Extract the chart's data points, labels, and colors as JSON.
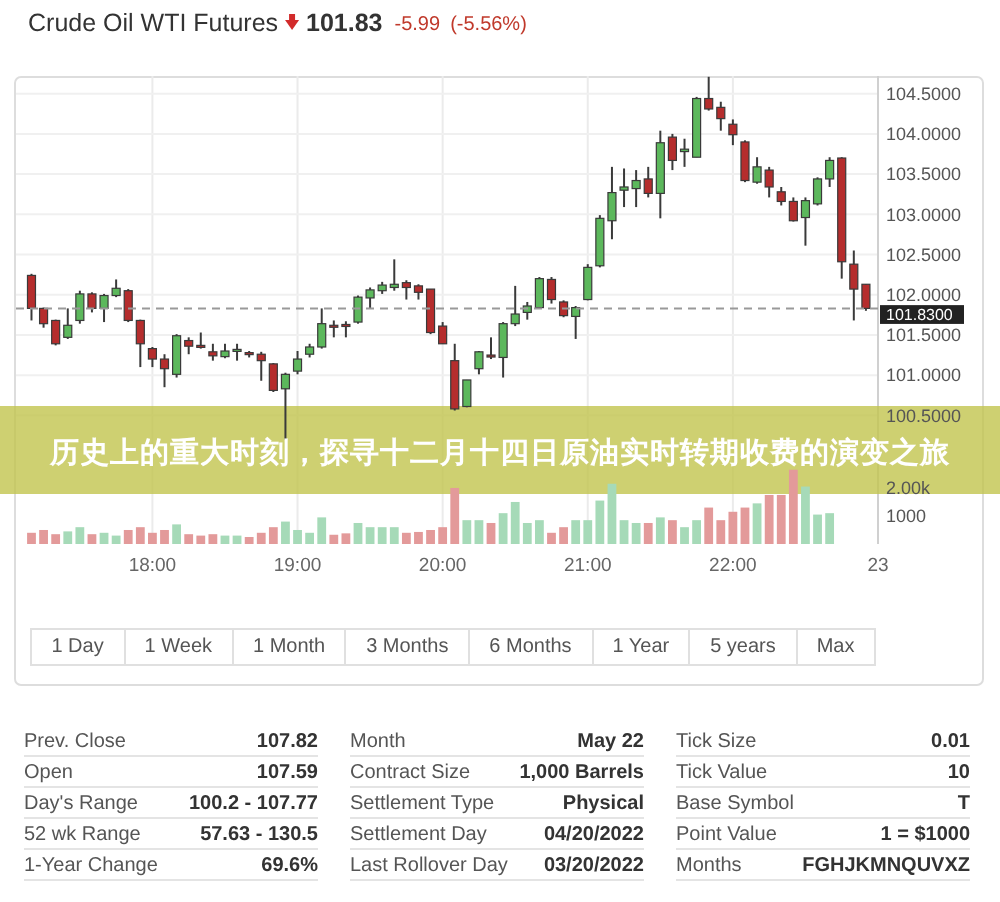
{
  "chart_data": {
    "type": "candlestick",
    "title": "Crude Oil WTI Futures",
    "x": [
      17.1667,
      17.25,
      17.3333,
      17.4167,
      17.5,
      17.5833,
      17.6667,
      17.75,
      17.8333,
      17.9167,
      18,
      18.0833,
      18.1667,
      18.25,
      18.3333,
      18.4167,
      18.5,
      18.5833,
      18.6667,
      18.75,
      18.8333,
      18.9167,
      19,
      19.0833,
      19.1667,
      19.25,
      19.3333,
      19.4167,
      19.5,
      19.5833,
      19.6667,
      19.75,
      19.8333,
      19.9167,
      20,
      20.0833,
      20.1667,
      20.25,
      20.3333,
      20.4167,
      20.5,
      20.5833,
      20.6667,
      20.75,
      20.8333,
      20.9167,
      21,
      21.0833,
      21.1667,
      21.25,
      21.3333,
      21.4167,
      21.5,
      21.5833,
      21.6667,
      21.75,
      21.8333,
      21.9167,
      22,
      22.0833,
      22.1667,
      22.25,
      22.3333,
      22.4167,
      22.5,
      22.5833,
      22.6667,
      22.75,
      22.8333,
      22.9167
    ],
    "ohlc": [
      [
        102.24,
        102.26,
        101.68,
        101.83
      ],
      [
        101.83,
        101.84,
        101.59,
        101.64
      ],
      [
        101.68,
        101.69,
        101.37,
        101.39
      ],
      [
        101.47,
        101.83,
        101.45,
        101.62
      ],
      [
        101.68,
        102.05,
        101.64,
        102.01
      ],
      [
        102.01,
        102.03,
        101.78,
        101.83
      ],
      [
        101.83,
        102.01,
        101.66,
        101.99
      ],
      [
        101.99,
        102.19,
        101.97,
        102.08
      ],
      [
        102.05,
        102.07,
        101.66,
        101.68
      ],
      [
        101.68,
        101.69,
        101.1,
        101.39
      ],
      [
        101.33,
        101.35,
        101.1,
        101.2
      ],
      [
        101.2,
        101.26,
        100.85,
        101.08
      ],
      [
        101.01,
        101.51,
        100.97,
        101.49
      ],
      [
        101.43,
        101.47,
        101.26,
        101.36
      ],
      [
        101.37,
        101.53,
        101.33,
        101.36
      ],
      [
        101.29,
        101.39,
        101.18,
        101.24
      ],
      [
        101.23,
        101.39,
        101.21,
        101.3
      ],
      [
        101.31,
        101.39,
        101.18,
        101.32
      ],
      [
        101.28,
        101.3,
        101.22,
        101.26
      ],
      [
        101.26,
        101.29,
        100.93,
        101.18
      ],
      [
        101.14,
        101.15,
        100.79,
        100.81
      ],
      [
        100.83,
        101.03,
        100.2,
        101.01
      ],
      [
        101.05,
        101.3,
        101.01,
        101.2
      ],
      [
        101.26,
        101.39,
        101.22,
        101.35
      ],
      [
        101.35,
        101.83,
        101.33,
        101.64
      ],
      [
        101.62,
        101.68,
        101.47,
        101.6
      ],
      [
        101.63,
        101.67,
        101.47,
        101.62
      ],
      [
        101.66,
        101.99,
        101.64,
        101.97
      ],
      [
        101.96,
        102.09,
        101.83,
        102.06
      ],
      [
        102.05,
        102.16,
        102.01,
        102.12
      ],
      [
        102.09,
        102.44,
        102.05,
        102.13
      ],
      [
        102.15,
        102.18,
        101.94,
        102.09
      ],
      [
        102.11,
        102.13,
        101.94,
        102.03
      ],
      [
        102.07,
        102.07,
        101.51,
        101.53
      ],
      [
        101.61,
        101.66,
        101.39,
        101.39
      ],
      [
        101.18,
        101.39,
        100.56,
        100.58
      ],
      [
        100.61,
        100.94,
        100.6,
        100.94
      ],
      [
        101.08,
        101.3,
        101.01,
        101.29
      ],
      [
        101.25,
        101.47,
        101.2,
        101.24
      ],
      [
        101.22,
        101.66,
        100.97,
        101.64
      ],
      [
        101.64,
        102.11,
        101.61,
        101.76
      ],
      [
        101.78,
        101.91,
        101.69,
        101.86
      ],
      [
        101.84,
        102.22,
        101.83,
        102.2
      ],
      [
        102.19,
        102.22,
        101.89,
        101.94
      ],
      [
        101.91,
        101.93,
        101.72,
        101.74
      ],
      [
        101.73,
        101.86,
        101.45,
        101.84
      ],
      [
        101.94,
        102.38,
        101.93,
        102.34
      ],
      [
        102.36,
        102.99,
        102.34,
        102.95
      ],
      [
        102.92,
        103.59,
        102.69,
        103.27
      ],
      [
        103.3,
        103.57,
        103.09,
        103.34
      ],
      [
        103.32,
        103.55,
        103.09,
        103.42
      ],
      [
        103.44,
        103.59,
        103.21,
        103.26
      ],
      [
        103.26,
        104.04,
        102.95,
        103.89
      ],
      [
        103.96,
        104.0,
        103.55,
        103.67
      ],
      [
        103.78,
        103.94,
        103.59,
        103.81
      ],
      [
        103.71,
        104.46,
        103.71,
        104.44
      ],
      [
        104.44,
        104.71,
        104.29,
        104.31
      ],
      [
        104.33,
        104.4,
        104.04,
        104.19
      ],
      [
        104.12,
        104.18,
        103.86,
        103.99
      ],
      [
        103.9,
        103.92,
        103.4,
        103.42
      ],
      [
        103.4,
        103.71,
        103.38,
        103.59
      ],
      [
        103.55,
        103.59,
        103.21,
        103.34
      ],
      [
        103.28,
        103.34,
        103.11,
        103.16
      ],
      [
        103.16,
        103.21,
        102.91,
        102.92
      ],
      [
        102.96,
        103.21,
        102.61,
        103.17
      ],
      [
        103.13,
        103.46,
        103.11,
        103.44
      ],
      [
        103.44,
        103.71,
        103.34,
        103.67
      ],
      [
        103.7,
        103.71,
        102.2,
        102.41
      ],
      [
        102.38,
        102.55,
        101.68,
        102.07
      ],
      [
        102.13,
        102.13,
        101.8,
        101.83
      ]
    ],
    "colors": [
      "#b52d2d",
      "#b52d2d",
      "#b52d2d",
      "#5cb85c",
      "#5cb85c",
      "#b52d2d",
      "#5cb85c",
      "#5cb85c",
      "#b52d2d",
      "#b52d2d",
      "#b52d2d",
      "#b52d2d",
      "#5cb85c",
      "#b52d2d",
      "#b52d2d",
      "#b52d2d",
      "#5cb85c",
      "#5cb85c",
      "#b52d2d",
      "#b52d2d",
      "#b52d2d",
      "#5cb85c",
      "#5cb85c",
      "#5cb85c",
      "#5cb85c",
      "#b52d2d",
      "#b52d2d",
      "#5cb85c",
      "#5cb85c",
      "#5cb85c",
      "#5cb85c",
      "#b52d2d",
      "#b52d2d",
      "#b52d2d",
      "#b52d2d",
      "#b52d2d",
      "#5cb85c",
      "#5cb85c",
      "#b52d2d",
      "#5cb85c",
      "#5cb85c",
      "#5cb85c",
      "#5cb85c",
      "#b52d2d",
      "#b52d2d",
      "#5cb85c",
      "#5cb85c",
      "#5cb85c",
      "#5cb85c",
      "#5cb85c",
      "#5cb85c",
      "#b52d2d",
      "#5cb85c",
      "#b52d2d",
      "#5cb85c",
      "#5cb85c",
      "#b52d2d",
      "#b52d2d",
      "#b52d2d",
      "#b52d2d",
      "#5cb85c",
      "#b52d2d",
      "#b52d2d",
      "#b52d2d",
      "#5cb85c",
      "#5cb85c",
      "#5cb85c",
      "#b52d2d",
      "#b52d2d",
      "#b52d2d"
    ],
    "series": [
      {
        "type": "bar",
        "axis": "y2",
        "values": [
          400,
          500,
          350,
          450,
          600,
          350,
          400,
          300,
          500,
          600,
          400,
          500,
          700,
          350,
          300,
          350,
          300,
          300,
          250,
          400,
          600,
          800,
          500,
          400,
          950,
          330,
          380,
          750,
          600,
          600,
          600,
          400,
          430,
          500,
          600,
          2000,
          850,
          850,
          750,
          1100,
          1500,
          750,
          850,
          400,
          600,
          850,
          850,
          1550,
          2150,
          850,
          750,
          750,
          950,
          850,
          600,
          850,
          1300,
          850,
          1150,
          1300,
          1450,
          1750,
          1750,
          2650,
          2050,
          1050,
          1100,
          null,
          null,
          null
        ],
        "colors": [
          "#e39a9a",
          "#e39a9a",
          "#e39a9a",
          "#a6dab8",
          "#a6dab8",
          "#e39a9a",
          "#a6dab8",
          "#a6dab8",
          "#e39a9a",
          "#e39a9a",
          "#e39a9a",
          "#e39a9a",
          "#a6dab8",
          "#e39a9a",
          "#e39a9a",
          "#e39a9a",
          "#a6dab8",
          "#a6dab8",
          "#e39a9a",
          "#e39a9a",
          "#e39a9a",
          "#a6dab8",
          "#a6dab8",
          "#a6dab8",
          "#a6dab8",
          "#e39a9a",
          "#e39a9a",
          "#a6dab8",
          "#a6dab8",
          "#a6dab8",
          "#a6dab8",
          "#e39a9a",
          "#e39a9a",
          "#e39a9a",
          "#e39a9a",
          "#e39a9a",
          "#a6dab8",
          "#a6dab8",
          "#e39a9a",
          "#a6dab8",
          "#a6dab8",
          "#a6dab8",
          "#a6dab8",
          "#e39a9a",
          "#e39a9a",
          "#a6dab8",
          "#a6dab8",
          "#a6dab8",
          "#a6dab8",
          "#a6dab8",
          "#a6dab8",
          "#e39a9a",
          "#a6dab8",
          "#e39a9a",
          "#a6dab8",
          "#a6dab8",
          "#e39a9a",
          "#e39a9a",
          "#e39a9a",
          "#e39a9a",
          "#a6dab8",
          "#e39a9a",
          "#e39a9a",
          "#e39a9a",
          "#a6dab8",
          "#a6dab8",
          "#a6dab8",
          null,
          null,
          null
        ]
      }
    ],
    "xlim": [
      17.06,
      23.0
    ],
    "xticks": [
      {
        "value": 18,
        "label": "18:00"
      },
      {
        "value": 19,
        "label": "19:00"
      },
      {
        "value": 20,
        "label": "20:00"
      },
      {
        "value": 21,
        "label": "21:00"
      },
      {
        "value": 22,
        "label": "22:00"
      },
      {
        "value": 23,
        "label": "23"
      }
    ],
    "ylim": [
      98.9,
      104.72
    ],
    "yticks": [
      {
        "value": 100.5,
        "label": "100.5000"
      },
      {
        "value": 101,
        "label": "101.0000"
      },
      {
        "value": 101.5,
        "label": "101.5000"
      },
      {
        "value": 102,
        "label": "102.0000"
      },
      {
        "value": 102.5,
        "label": "102.5000"
      },
      {
        "value": 103,
        "label": "103.0000"
      },
      {
        "value": 103.5,
        "label": "103.5000"
      },
      {
        "value": 104,
        "label": "104.0000"
      },
      {
        "value": 104.5,
        "label": "104.5000"
      }
    ],
    "y2lim": [
      0,
      16700
    ],
    "y2ticks": [
      1000,
      {
        "value": 2000,
        "label": "2.00k"
      }
    ],
    "grid": true,
    "ref_lines": [
      {
        "axis": "y",
        "value": 101.83,
        "label": "101.8300",
        "color": "#999999",
        "line_style": "dashed"
      }
    ],
    "annotations": [
      "101.83",
      "-5.99",
      "(-5.56%)",
      "历史上的重大时刻，探寻十二月十四日原油实时转期收费的演变之旅",
      "1 Day",
      "1 Week",
      "1 Month",
      "3 Months",
      "6 Months",
      "1 Year",
      "5 years",
      "Max",
      "Prev. Close",
      "107.82",
      "Open",
      "107.59",
      "Day's Range",
      "100.2 - 107.77",
      "52 wk Range",
      "57.63 - 130.5",
      "1-Year Change",
      "69.6%",
      "Month",
      "May 22",
      "Contract Size",
      "1,000 Barrels",
      "Settlement Type",
      "Physical",
      "Settlement Day",
      "04/20/2022",
      "Last Rollover Day",
      "03/20/2022",
      "Tick Size",
      "0.01",
      "Tick Value",
      "10",
      "Base Symbol",
      "T",
      "Point Value",
      "1 = $1000",
      "Months",
      "FGHJKMNQUVXZ"
    ]
  }
}
